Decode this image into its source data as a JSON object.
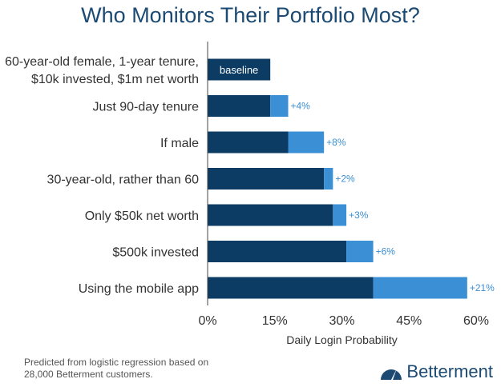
{
  "title": "Who Monitors Their Portfolio Most?",
  "footnote": {
    "line1": "Predicted from logistic regression based on",
    "line2": "28,000 Betterment customers."
  },
  "brand": {
    "name": "Betterment",
    "logo_icon": "betterment-logo-icon"
  },
  "colors": {
    "base": "#0c3c63",
    "increment": "#3b8fd4",
    "title": "#1c4a72",
    "increment_label": "#3b8fd4"
  },
  "chart_data": {
    "type": "bar",
    "orientation": "horizontal",
    "stacked": true,
    "categories": [
      [
        "60-year-old female, 1-year tenure,",
        "$10k invested, $1m net worth"
      ],
      [
        "Just 90-day tenure"
      ],
      [
        "If male"
      ],
      [
        "30-year-old, rather than 60"
      ],
      [
        "Only $50k net worth"
      ],
      [
        "$500k invested"
      ],
      [
        "Using the mobile app"
      ]
    ],
    "series": [
      {
        "values": [
          14,
          14,
          18,
          26,
          28,
          31,
          37
        ]
      },
      {
        "values": [
          0,
          4,
          8,
          2,
          3,
          6,
          21
        ]
      }
    ],
    "bar_labels": [
      "baseline",
      "+4%",
      "+8%",
      "+2%",
      "+3%",
      "+6%",
      "+21%"
    ],
    "xlabel": "Daily Login Probability",
    "xlim": [
      0,
      60
    ],
    "xticks": [
      0,
      15,
      30,
      45,
      60
    ],
    "xtick_labels": [
      "0%",
      "15%",
      "30%",
      "45%",
      "60%"
    ],
    "grid": false
  }
}
